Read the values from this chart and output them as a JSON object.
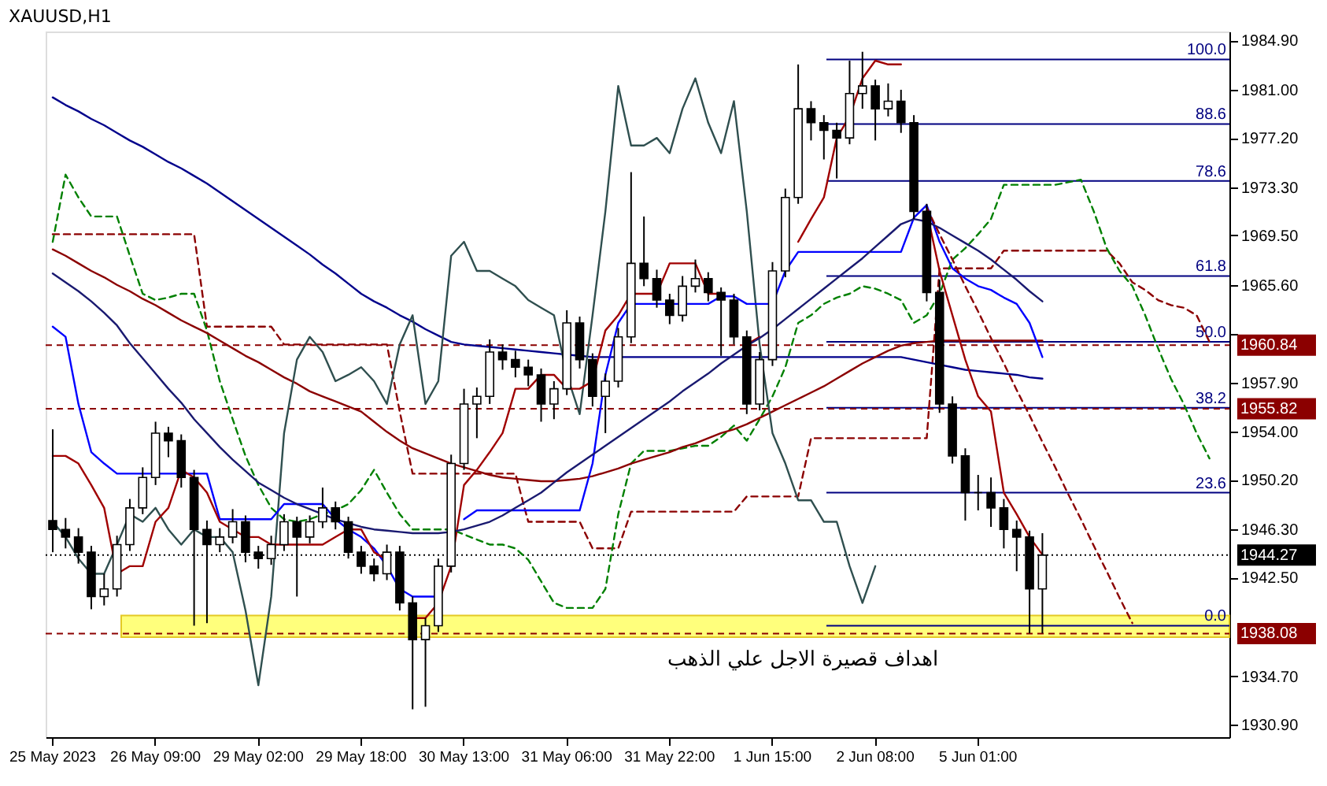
{
  "chart_data": {
    "type": "candlestick",
    "title": "XAUUSD,H1",
    "categories": [
      "25 May 2023",
      null,
      null,
      null,
      null,
      null,
      null,
      null,
      "26 May 09:00",
      null,
      null,
      null,
      null,
      null,
      null,
      null,
      "29 May 02:00",
      null,
      null,
      null,
      null,
      null,
      null,
      null,
      "29 May 18:00",
      null,
      null,
      null,
      null,
      null,
      null,
      null,
      "30 May 13:00",
      null,
      null,
      null,
      null,
      null,
      null,
      null,
      "31 May 06:00",
      null,
      null,
      null,
      null,
      null,
      null,
      null,
      "31 May 22:00",
      null,
      null,
      null,
      null,
      null,
      null,
      null,
      "1 Jun 15:00",
      null,
      null,
      null,
      null,
      null,
      null,
      null,
      "2 Jun 08:00",
      null,
      null,
      null,
      null,
      null,
      null,
      null,
      "5 Jun 01:00",
      null,
      null,
      null,
      null,
      null,
      null,
      null,
      null,
      null,
      null,
      null,
      null,
      null,
      null,
      null,
      null,
      null,
      null,
      null
    ],
    "ohlc": [
      [
        1947.0,
        1954.2,
        1944.5,
        1946.3
      ],
      [
        1946.3,
        1947.2,
        1944.8,
        1945.7
      ],
      [
        1945.7,
        1946.4,
        1943.6,
        1944.5
      ],
      [
        1944.5,
        1945.0,
        1940.0,
        1941.0
      ],
      [
        1941.0,
        1942.8,
        1940.3,
        1941.6
      ],
      [
        1941.6,
        1945.8,
        1941.0,
        1945.1
      ],
      [
        1945.1,
        1948.7,
        1944.6,
        1948.0
      ],
      [
        1948.0,
        1951.2,
        1947.5,
        1950.4
      ],
      [
        1950.4,
        1954.8,
        1949.8,
        1953.9
      ],
      [
        1953.9,
        1954.4,
        1952.0,
        1953.3
      ],
      [
        1953.3,
        1953.8,
        1949.6,
        1950.4
      ],
      [
        1950.4,
        1951.0,
        1938.7,
        1946.3
      ],
      [
        1946.3,
        1947.0,
        1938.9,
        1945.1
      ],
      [
        1945.1,
        1946.4,
        1944.5,
        1945.7
      ],
      [
        1945.7,
        1947.9,
        1945.2,
        1946.9
      ],
      [
        1946.9,
        1947.4,
        1943.7,
        1944.5
      ],
      [
        1944.5,
        1945.0,
        1943.2,
        1944.0
      ],
      [
        1944.0,
        1945.8,
        1943.5,
        1945.1
      ],
      [
        1945.1,
        1947.5,
        1944.6,
        1946.9
      ],
      [
        1946.9,
        1947.3,
        1941.0,
        1945.7
      ],
      [
        1945.7,
        1947.4,
        1945.2,
        1946.9
      ],
      [
        1946.9,
        1949.6,
        1946.4,
        1948.0
      ],
      [
        1948.0,
        1948.5,
        1946.3,
        1946.9
      ],
      [
        1946.9,
        1947.3,
        1944.0,
        1944.5
      ],
      [
        1944.5,
        1945.0,
        1942.8,
        1943.4
      ],
      [
        1943.4,
        1944.0,
        1942.2,
        1942.8
      ],
      [
        1942.8,
        1945.1,
        1942.3,
        1944.5
      ],
      [
        1944.5,
        1945.0,
        1939.9,
        1940.5
      ],
      [
        1940.5,
        1941.0,
        1932.1,
        1937.6
      ],
      [
        1937.6,
        1939.3,
        1932.3,
        1938.7
      ],
      [
        1938.7,
        1944.0,
        1938.2,
        1943.4
      ],
      [
        1943.4,
        1952.2,
        1942.9,
        1951.5
      ],
      [
        1951.5,
        1957.4,
        1951.0,
        1956.2
      ],
      [
        1956.2,
        1957.5,
        1953.5,
        1956.8
      ],
      [
        1956.8,
        1961.3,
        1956.2,
        1960.3
      ],
      [
        1960.3,
        1960.9,
        1958.9,
        1959.7
      ],
      [
        1959.7,
        1960.4,
        1958.3,
        1959.1
      ],
      [
        1959.1,
        1959.7,
        1957.6,
        1958.5
      ],
      [
        1958.5,
        1959.0,
        1954.8,
        1956.2
      ],
      [
        1956.2,
        1958.0,
        1955.0,
        1957.4
      ],
      [
        1957.4,
        1963.6,
        1956.9,
        1962.6
      ],
      [
        1962.6,
        1963.1,
        1959.0,
        1959.7
      ],
      [
        1959.7,
        1960.2,
        1956.0,
        1956.8
      ],
      [
        1956.8,
        1958.6,
        1953.9,
        1958.0
      ],
      [
        1958.0,
        1962.2,
        1957.5,
        1961.5
      ],
      [
        1961.5,
        1974.5,
        1961.0,
        1967.3
      ],
      [
        1967.3,
        1971.0,
        1965.5,
        1966.1
      ],
      [
        1966.1,
        1966.8,
        1963.8,
        1964.4
      ],
      [
        1964.4,
        1964.9,
        1962.5,
        1963.2
      ],
      [
        1963.2,
        1966.3,
        1962.7,
        1965.5
      ],
      [
        1965.5,
        1967.6,
        1965.0,
        1966.1
      ],
      [
        1966.1,
        1966.6,
        1964.3,
        1965.0
      ],
      [
        1965.0,
        1965.4,
        1960.0,
        1964.4
      ],
      [
        1964.4,
        1964.9,
        1960.9,
        1961.5
      ],
      [
        1961.5,
        1962.0,
        1955.4,
        1956.2
      ],
      [
        1956.2,
        1960.3,
        1955.7,
        1959.7
      ],
      [
        1959.7,
        1967.4,
        1959.2,
        1966.7
      ],
      [
        1966.7,
        1973.2,
        1966.2,
        1972.5
      ],
      [
        1972.5,
        1983.0,
        1972.0,
        1979.5
      ],
      [
        1979.5,
        1980.1,
        1977.0,
        1978.4
      ],
      [
        1978.4,
        1979.0,
        1975.5,
        1977.8
      ],
      [
        1977.8,
        1978.4,
        1974.0,
        1977.2
      ],
      [
        1977.2,
        1983.3,
        1976.7,
        1980.7
      ],
      [
        1980.7,
        1984.0,
        1979.5,
        1981.3
      ],
      [
        1981.3,
        1981.8,
        1977.0,
        1979.5
      ],
      [
        1979.5,
        1981.5,
        1978.9,
        1980.1
      ],
      [
        1980.1,
        1981.0,
        1977.6,
        1978.4
      ],
      [
        1978.4,
        1979.0,
        1970.8,
        1971.4
      ],
      [
        1971.4,
        1972.0,
        1964.3,
        1965.0
      ],
      [
        1965.0,
        1966.0,
        1955.5,
        1956.2
      ],
      [
        1956.2,
        1956.8,
        1951.5,
        1952.1
      ],
      [
        1952.1,
        1952.7,
        1947.0,
        1949.2
      ],
      [
        1949.2,
        1950.6,
        1947.8,
        1949.2
      ],
      [
        1949.2,
        1950.4,
        1946.5,
        1948.0
      ],
      [
        1948.0,
        1948.7,
        1944.8,
        1946.3
      ],
      [
        1946.3,
        1947.0,
        1943.0,
        1945.7
      ],
      [
        1945.7,
        1946.2,
        1938.1,
        1941.6
      ],
      [
        1941.6,
        1946.0,
        1938.1,
        1944.27
      ],
      null,
      null,
      null,
      null,
      null,
      null,
      null,
      null,
      null,
      null,
      null,
      null,
      null,
      null
    ],
    "series": [
      {
        "type": "line",
        "color": "#8b0000",
        "line_style": "dashed",
        "values": [
          1969.6,
          1969.6,
          1969.6,
          1969.6,
          1969.6,
          1969.6,
          1969.6,
          1969.6,
          1969.6,
          1969.6,
          1969.6,
          1969.6,
          1962.3,
          1962.3,
          1962.3,
          1962.3,
          1962.3,
          1962.3,
          1960.9,
          1960.9,
          1960.9,
          1960.9,
          1960.9,
          1960.9,
          1960.9,
          1960.9,
          1960.9,
          1955.6,
          1950.7,
          1950.7,
          1950.7,
          1950.7,
          1950.7,
          1950.7,
          1950.7,
          1950.7,
          1950.7,
          1946.9,
          1946.9,
          1946.9,
          1946.9,
          1946.9,
          1944.8,
          1944.8,
          1944.8,
          1947.7,
          1947.7,
          1947.7,
          1947.7,
          1947.7,
          1947.7,
          1947.7,
          1947.7,
          1947.7,
          1948.9,
          1948.9,
          1948.9,
          1948.9,
          1948.9,
          1953.5,
          1953.5,
          1953.5,
          1953.5,
          1953.5,
          1953.5,
          1953.5,
          1953.5,
          1953.5,
          1953.5,
          1966.9,
          1966.9,
          1966.9,
          1966.9,
          1966.9,
          1968.3,
          1968.3,
          1968.3,
          1968.3,
          1968.3,
          1968.3,
          1968.3,
          1968.3,
          1968.3,
          1967.3,
          1965.8,
          1965.2,
          1964.4,
          1964.0,
          1963.8,
          1963.2,
          1961.1,
          null
        ]
      },
      {
        "type": "line",
        "color": "#008000",
        "line_style": "dashed",
        "values": [
          1969.0,
          1974.3,
          1972.5,
          1971.0,
          1971.0,
          1971.0,
          1967.9,
          1964.9,
          1964.4,
          1964.6,
          1964.9,
          1964.9,
          1962.0,
          1958.0,
          1955.0,
          1952.1,
          1949.8,
          1948.0,
          1947.1,
          1946.9,
          1947.1,
          1947.5,
          1947.8,
          1948.3,
          1949.4,
          1951.0,
          1949.2,
          1947.5,
          1946.3,
          1946.3,
          1946.3,
          1946.3,
          1945.9,
          1945.5,
          1945.1,
          1945.1,
          1944.8,
          1943.9,
          1942.2,
          1940.5,
          1940.1,
          1940.1,
          1940.1,
          1941.6,
          1947.5,
          1951.5,
          1952.5,
          1952.5,
          1952.5,
          1952.7,
          1952.9,
          1952.9,
          1953.6,
          1954.5,
          1953.3,
          1955.0,
          1956.8,
          1959.1,
          1962.6,
          1963.2,
          1964.1,
          1964.6,
          1964.9,
          1965.5,
          1965.3,
          1964.9,
          1964.4,
          1962.6,
          1963.2,
          1964.9,
          1967.6,
          1968.5,
          1969.6,
          1970.8,
          1973.5,
          1973.5,
          1973.5,
          1973.5,
          1973.5,
          1973.7,
          1973.9,
          1971.4,
          1968.5,
          1966.7,
          1965.5,
          1963.2,
          1960.6,
          1958.2,
          1956.2,
          1953.9,
          1951.9,
          null
        ]
      },
      {
        "type": "line",
        "color": "#00008b",
        "values": [
          1980.4,
          1979.8,
          1979.3,
          1978.7,
          1978.2,
          1977.6,
          1977.0,
          1976.5,
          1975.9,
          1975.3,
          1974.8,
          1974.2,
          1973.6,
          1972.9,
          1972.2,
          1971.5,
          1970.8,
          1970.1,
          1969.4,
          1968.7,
          1968.0,
          1967.2,
          1966.5,
          1965.7,
          1964.9,
          1964.3,
          1963.8,
          1963.2,
          1962.7,
          1962.1,
          1961.6,
          1961.1,
          1960.9,
          1960.8,
          1960.7,
          1960.6,
          1960.5,
          1960.4,
          1960.3,
          1960.2,
          1960.1,
          1960.0,
          1959.9,
          1959.9,
          1959.9,
          1959.9,
          1959.9,
          1959.9,
          1959.9,
          1959.9,
          1959.9,
          1959.9,
          1959.9,
          1959.9,
          1959.9,
          1959.9,
          1959.9,
          1959.9,
          1959.9,
          1959.9,
          1959.9,
          1959.9,
          1959.9,
          1959.9,
          1959.9,
          1959.9,
          1959.9,
          1959.7,
          1959.5,
          1959.3,
          1959.1,
          1958.9,
          1958.8,
          1958.7,
          1958.6,
          1958.5,
          1958.3,
          1958.2,
          null,
          null,
          null,
          null,
          null,
          null,
          null,
          null,
          null,
          null,
          null,
          null,
          null,
          null
        ]
      },
      {
        "type": "line",
        "color": "#8b0000",
        "values": [
          1968.4,
          1967.9,
          1967.3,
          1966.7,
          1966.2,
          1965.6,
          1965.1,
          1964.5,
          1964.0,
          1963.4,
          1962.8,
          1962.3,
          1961.8,
          1961.2,
          1960.6,
          1960.0,
          1959.5,
          1958.9,
          1958.3,
          1957.8,
          1957.2,
          1956.8,
          1956.4,
          1956.0,
          1955.6,
          1954.8,
          1954.0,
          1953.3,
          1952.7,
          1952.3,
          1951.9,
          1951.5,
          1951.2,
          1950.9,
          1950.6,
          1950.4,
          1950.3,
          1950.2,
          1950.1,
          1950.1,
          1950.2,
          1950.3,
          1950.5,
          1950.8,
          1951.1,
          1951.5,
          1951.8,
          1952.1,
          1952.4,
          1952.8,
          1953.1,
          1953.5,
          1953.9,
          1954.2,
          1954.6,
          1955.1,
          1955.6,
          1956.1,
          1956.6,
          1957.1,
          1957.6,
          1958.2,
          1958.8,
          1959.4,
          1959.9,
          1960.4,
          1960.8,
          1961.0,
          1961.1,
          1961.2,
          1961.2,
          1961.2,
          1961.2,
          1961.2,
          1961.2,
          1961.2,
          1961.2,
          1961.2,
          null,
          null,
          null,
          null,
          null,
          null,
          null,
          null,
          null,
          null,
          null,
          null,
          null,
          null
        ]
      },
      {
        "type": "line",
        "color": "#2f4f4f",
        "values": [
          1946.9,
          1945.7,
          1944.0,
          1942.8,
          1942.8,
          1945.1,
          1947.5,
          1946.9,
          1948.0,
          1946.3,
          1945.1,
          1946.3,
          1945.7,
          1945.7,
          1944.5,
          1939.9,
          1934.0,
          1941.0,
          1953.9,
          1959.7,
          1961.5,
          1960.3,
          1958.0,
          1958.5,
          1959.1,
          1958.0,
          1956.2,
          1960.9,
          1963.2,
          1956.2,
          1958.0,
          1967.9,
          1969.0,
          1966.7,
          1966.7,
          1966.1,
          1965.5,
          1964.4,
          1963.8,
          1963.2,
          1958.5,
          1955.4,
          1963.2,
          1971.4,
          1981.3,
          1976.6,
          1976.6,
          1977.2,
          1976.0,
          1979.5,
          1981.9,
          1978.4,
          1976.0,
          1980.1,
          1971.4,
          1960.9,
          1953.9,
          1951.5,
          1948.6,
          1948.6,
          1946.9,
          1946.9,
          1943.4,
          1940.5,
          1943.4,
          null,
          null,
          null,
          null,
          null,
          null,
          null,
          null,
          null,
          null,
          null,
          null,
          null,
          null,
          null,
          null,
          null,
          null,
          null,
          null,
          null,
          null,
          null,
          null,
          null,
          null,
          null
        ]
      },
      {
        "type": "line",
        "color": "#0000ff",
        "values": [
          1962.3,
          1961.5,
          1956.2,
          1952.4,
          1951.5,
          1950.7,
          1950.7,
          1950.7,
          1950.7,
          1950.7,
          1950.7,
          1950.7,
          1950.7,
          1947.1,
          1947.1,
          1947.1,
          1947.1,
          1947.1,
          1948.3,
          1948.3,
          1948.3,
          1948.3,
          1947.1,
          1946.3,
          1945.7,
          1944.8,
          1943.4,
          1941.6,
          1941.0,
          1941.0,
          1941.0,
          null,
          1947.1,
          1947.8,
          1947.8,
          1947.8,
          1947.8,
          1947.8,
          1947.8,
          1947.8,
          1947.8,
          1947.8,
          1951.5,
          1958.5,
          1962.6,
          1964.1,
          1964.1,
          1964.1,
          1964.1,
          1964.1,
          1964.1,
          1964.1,
          1964.7,
          1964.7,
          1964.1,
          1964.1,
          1964.1,
          1966.7,
          1968.2,
          1968.2,
          1968.2,
          1968.2,
          1968.2,
          1968.2,
          1968.2,
          1968.2,
          1968.2,
          1970.9,
          1971.9,
          1969.0,
          1966.9,
          1966.1,
          1965.5,
          1965.2,
          1964.6,
          1964.1,
          1962.6,
          1959.9,
          null,
          null,
          null,
          null,
          null,
          null,
          null,
          null,
          null,
          null,
          null,
          null,
          null,
          null
        ]
      },
      {
        "type": "line",
        "color": "#a00000",
        "values": [
          1952.1,
          1952.1,
          1951.5,
          1949.8,
          1948.0,
          1942.8,
          1943.4,
          1943.4,
          1946.9,
          1948.0,
          1951.0,
          1950.4,
          1949.2,
          1946.9,
          1946.3,
          1945.7,
          1945.7,
          1945.1,
          1945.1,
          1945.1,
          1945.1,
          1945.1,
          1945.7,
          1946.3,
          1946.3,
          1944.5,
          1943.9,
          null,
          1939.3,
          1939.3,
          1940.5,
          1943.4,
          1949.8,
          1951.0,
          1952.4,
          1953.9,
          1957.4,
          1957.4,
          1958.5,
          1958.5,
          1957.4,
          1957.4,
          1958.0,
          1962.0,
          1963.2,
          1964.9,
          1964.9,
          1964.9,
          1967.3,
          1967.3,
          1967.3,
          1964.9,
          1964.9,
          null,
          1960.9,
          1961.5,
          null,
          null,
          1969.0,
          1970.8,
          1972.5,
          1977.2,
          1978.9,
          1981.9,
          1983.3,
          1983.0,
          1983.0,
          null,
          1971.4,
          1966.7,
          1963.2,
          1959.7,
          1956.8,
          1955.6,
          1949.2,
          1947.5,
          1945.7,
          1944.3,
          null,
          null,
          null,
          null,
          null,
          null,
          null,
          null,
          null,
          null,
          null,
          null,
          null,
          null
        ]
      },
      {
        "type": "line",
        "color": "#191970",
        "values": [
          1966.5,
          1965.8,
          1965.1,
          1964.3,
          1963.4,
          1962.4,
          1961.0,
          1959.8,
          1958.6,
          1957.4,
          1956.3,
          1955.0,
          1953.9,
          1952.8,
          1951.8,
          1950.9,
          1950.0,
          1949.4,
          1948.8,
          1948.3,
          1947.9,
          1947.5,
          1947.1,
          1946.8,
          1946.5,
          1946.3,
          1946.2,
          1946.1,
          1946.0,
          1946.0,
          1946.0,
          1946.1,
          1946.3,
          1946.6,
          1946.9,
          1947.4,
          1948.0,
          1948.6,
          1949.2,
          1950.0,
          1950.8,
          1951.5,
          1952.2,
          1952.9,
          1953.6,
          1954.3,
          1955.0,
          1955.7,
          1956.4,
          1957.2,
          1957.9,
          1958.6,
          1959.4,
          1960.1,
          1960.8,
          1961.4,
          1962.1,
          1962.9,
          1963.7,
          1964.5,
          1965.3,
          1966.1,
          1966.9,
          1967.7,
          1968.6,
          1969.5,
          1970.4,
          1970.8,
          1970.6,
          1970.1,
          1969.5,
          1968.9,
          1968.3,
          1967.6,
          1966.8,
          1966.0,
          1965.1,
          1964.3,
          null,
          null,
          null,
          null,
          null,
          null,
          null,
          null,
          null,
          null,
          null,
          null,
          null,
          null
        ]
      },
      {
        "type": "line",
        "color": "#8b0000",
        "line_style": "dashed",
        "values": [
          null,
          null,
          null,
          null,
          null,
          null,
          null,
          null,
          null,
          null,
          null,
          null,
          null,
          null,
          null,
          null,
          null,
          null,
          null,
          null,
          null,
          null,
          null,
          null,
          null,
          null,
          null,
          null,
          null,
          null,
          null,
          null,
          null,
          null,
          null,
          null,
          null,
          null,
          null,
          null,
          null,
          null,
          null,
          null,
          null,
          null,
          null,
          null,
          null,
          null,
          null,
          null,
          null,
          null,
          null,
          null,
          null,
          null,
          null,
          null,
          null,
          null,
          null,
          null,
          null,
          null,
          null,
          null,
          1971.7,
          1969.6,
          1967.6,
          1965.5,
          1963.5,
          1961.4,
          1959.4,
          1957.3,
          1955.3,
          1953.2,
          1951.2,
          1949.1,
          1947.1,
          1945.0,
          1943.0,
          1940.9,
          1938.9,
          null,
          null,
          null,
          null,
          null,
          null,
          null
        ]
      }
    ],
    "ylim": [
      1929.9,
      1985.6
    ],
    "yticks": [
      {
        "value": 1930.9,
        "label": "1930.90"
      },
      {
        "value": 1934.7,
        "label": "1934.70"
      },
      {
        "value": 1942.5,
        "label": "1942.50"
      },
      {
        "value": 1946.3,
        "label": "1946.30"
      },
      {
        "value": 1950.2,
        "label": "1950.20"
      },
      {
        "value": 1954.0,
        "label": "1954.00"
      },
      {
        "value": 1957.9,
        "label": "1957.90"
      },
      {
        "value": 1961.7,
        "label": null
      },
      {
        "value": 1965.6,
        "label": "1965.60"
      },
      {
        "value": 1969.5,
        "label": "1969.50"
      },
      {
        "value": 1973.3,
        "label": "1973.30"
      },
      {
        "value": 1977.2,
        "label": "1977.20"
      },
      {
        "value": 1981.0,
        "label": "1981.00"
      },
      {
        "value": 1984.9,
        "label": "1984.90"
      }
    ],
    "ref_lines": [
      {
        "axis": "y",
        "value": 1983.4,
        "color": "#000080",
        "line_style": "solid"
      },
      {
        "axis": "y",
        "value": 1978.3,
        "color": "#000080",
        "line_style": "solid"
      },
      {
        "axis": "y",
        "value": 1973.8,
        "color": "#000080",
        "line_style": "solid"
      },
      {
        "axis": "y",
        "value": 1966.3,
        "color": "#000080",
        "line_style": "solid"
      },
      {
        "axis": "y",
        "value": 1961.1,
        "color": "#000080",
        "line_style": "solid"
      },
      {
        "axis": "y",
        "value": 1955.9,
        "color": "#000080",
        "line_style": "solid"
      },
      {
        "axis": "y",
        "value": 1949.2,
        "color": "#000080",
        "line_style": "solid"
      },
      {
        "axis": "y",
        "value": 1938.7,
        "color": "#000080",
        "line_style": "solid"
      },
      {
        "axis": "y",
        "value": 1960.84,
        "label": "1960.84",
        "color": "#8b0000",
        "line_style": "dashed"
      },
      {
        "axis": "y",
        "value": 1955.82,
        "label": "1955.82",
        "color": "#8b0000",
        "line_style": "dashed"
      },
      {
        "axis": "y",
        "value": 1938.08,
        "label": "1938.08",
        "color": "#8b0000",
        "line_style": "dashed"
      },
      {
        "axis": "y",
        "value": 1944.27,
        "label": "1944.27",
        "color": "#000000",
        "line_style": "dotted"
      }
    ],
    "bands": [
      {
        "axis": "y",
        "from": 1937.8,
        "to": 1939.5,
        "label": "اهداف قصيرة الاجل علي الذهب",
        "color": "#ffff66"
      }
    ],
    "annotations": [
      {
        "text": "100.0",
        "y": 1983.4
      },
      {
        "text": "88.6",
        "y": 1978.3
      },
      {
        "text": "78.6",
        "y": 1973.8
      },
      {
        "text": "61.8",
        "y": 1966.3
      },
      {
        "text": "50.0",
        "y": 1961.1
      },
      {
        "text": "38.2",
        "y": 1955.9
      },
      {
        "text": "23.6",
        "y": 1949.2
      },
      {
        "text": "0.0",
        "y": 1938.7
      }
    ],
    "grid": false
  }
}
